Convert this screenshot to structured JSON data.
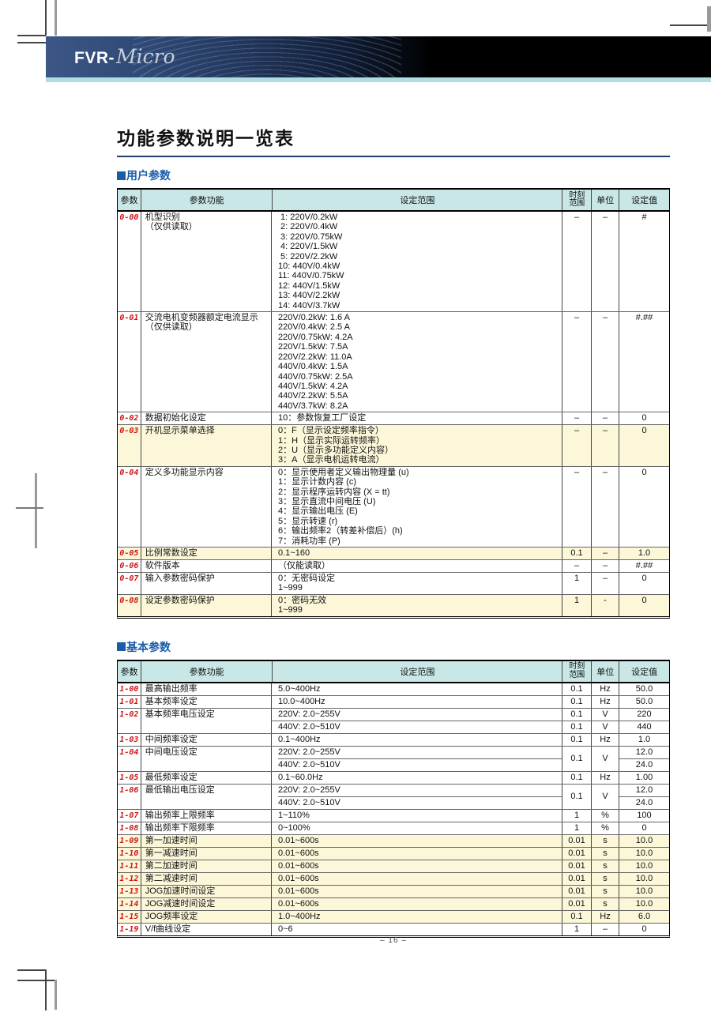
{
  "header": {
    "logo_prefix": "FVR-",
    "logo_suffix": "Micro"
  },
  "title": "功能参数说明一览表",
  "page": {
    "number_label": "– 16 –"
  },
  "columns": {
    "param": "参数",
    "function": "参数功能",
    "range": "设定范围",
    "res_line1": "时刻",
    "res_line2": "范围",
    "unit": "单位",
    "value": "设定值"
  },
  "colors": {
    "table_header_bg": "#c9e7e7",
    "row_highlight": "#fcf7d9",
    "param_code_red": "#cf1616",
    "section_blue": "#1a5ca8",
    "title_rule": "#1e3c6e",
    "accent_strip": "#aedee2",
    "band_navy": "#2e4874"
  },
  "sections": [
    {
      "heading": "用户参数",
      "rows": [
        {
          "code": "0-00",
          "name": [
            "机型识别",
            "（仅供读取）"
          ],
          "highlight": false,
          "merge_res_unit": false,
          "subrows": [
            {
              "range": [
                " 1: 220V/0.2kW",
                " 2: 220V/0.4kW",
                " 3: 220V/0.75kW",
                " 4: 220V/1.5kW",
                " 5: 220V/2.2kW",
                "10: 440V/0.4kW",
                "11: 440V/0.75kW",
                "12: 440V/1.5kW",
                "13: 440V/2.2kW",
                "14: 440V/3.7kW"
              ],
              "res": "–",
              "unit": "–",
              "value": "#"
            }
          ]
        },
        {
          "code": "0-01",
          "name": [
            "交流电机变频器额定电流显示",
            "（仅供读取）"
          ],
          "highlight": false,
          "merge_res_unit": false,
          "subrows": [
            {
              "range": [
                "220V/0.2kW: 1.6 A",
                "220V/0.4kW: 2.5 A",
                "220V/0.75kW: 4.2A",
                "220V/1.5kW: 7.5A",
                "220V/2.2kW: 11.0A",
                "440V/0.4kW: 1.5A",
                "440V/0.75kW: 2.5A",
                "440V/1.5kW: 4.2A",
                "440V/2.2kW: 5.5A",
                "440V/3.7kW: 8.2A"
              ],
              "res": "–",
              "unit": "–",
              "value": "#.##"
            }
          ]
        },
        {
          "code": "0-02",
          "name": [
            "数据初始化设定"
          ],
          "highlight": false,
          "merge_res_unit": false,
          "subrows": [
            {
              "range": [
                "10：参数恢复工厂设定"
              ],
              "res": "–",
              "unit": "–",
              "value": "0"
            }
          ]
        },
        {
          "code": "0-03",
          "name": [
            "开机显示菜单选择"
          ],
          "highlight": true,
          "merge_res_unit": false,
          "subrows": [
            {
              "range": [
                "0：F（显示设定频率指令）",
                "1：H（显示实际运转频率）",
                "2：U（显示多功能定义内容）",
                "3：A（显示电机运转电流）"
              ],
              "res": "–",
              "unit": "–",
              "value": "0"
            }
          ]
        },
        {
          "code": "0-04",
          "name": [
            "定义多功能显示内容"
          ],
          "highlight": false,
          "merge_res_unit": false,
          "subrows": [
            {
              "range": [
                "0：显示使用者定义输出物理量 (u)",
                "1：显示计数内容 (c)",
                "2：显示程序运转内容 (X = tt)",
                "3：显示直流中间电压 (U)",
                "4：显示输出电压 (E)",
                "5：显示转速 (r)",
                "6：输出频率2（转差补偿后）(h)",
                "7：消耗功率 (P)"
              ],
              "res": "–",
              "unit": "–",
              "value": "0"
            }
          ]
        },
        {
          "code": "0-05",
          "name": [
            "比例常数设定"
          ],
          "highlight": true,
          "merge_res_unit": false,
          "subrows": [
            {
              "range": [
                "0.1~160"
              ],
              "res": "0.1",
              "unit": "–",
              "value": "1.0"
            }
          ]
        },
        {
          "code": "0-06",
          "name": [
            "软件版本"
          ],
          "highlight": false,
          "merge_res_unit": false,
          "subrows": [
            {
              "range": [
                "（仅能读取）"
              ],
              "res": "–",
              "unit": "–",
              "value": "#.##"
            }
          ]
        },
        {
          "code": "0-07",
          "name": [
            "输入参数密码保护"
          ],
          "highlight": false,
          "merge_res_unit": false,
          "subrows": [
            {
              "range": [
                "0：无密码设定",
                "1~999"
              ],
              "res": "1",
              "unit": "–",
              "value": "0"
            }
          ]
        },
        {
          "code": "0-08",
          "name": [
            "设定参数密码保护"
          ],
          "highlight": true,
          "merge_res_unit": false,
          "subrows": [
            {
              "range": [
                "0：密码无效",
                "1~999"
              ],
              "res": "1",
              "unit": "-",
              "value": "0"
            }
          ]
        }
      ]
    },
    {
      "heading": "基本参数",
      "rows": [
        {
          "code": "1-00",
          "name": [
            "最高输出频率"
          ],
          "highlight": false,
          "merge_res_unit": false,
          "subrows": [
            {
              "range": [
                "5.0~400Hz"
              ],
              "res": "0.1",
              "unit": "Hz",
              "value": "50.0"
            }
          ]
        },
        {
          "code": "1-01",
          "name": [
            "基本频率设定"
          ],
          "highlight": false,
          "merge_res_unit": false,
          "subrows": [
            {
              "range": [
                "10.0~400Hz"
              ],
              "res": "0.1",
              "unit": "Hz",
              "value": "50.0"
            }
          ]
        },
        {
          "code": "1-02",
          "name": [
            "基本频率电压设定"
          ],
          "highlight": false,
          "merge_res_unit": false,
          "subrows": [
            {
              "range": [
                "220V: 2.0~255V"
              ],
              "res": "0.1",
              "unit": "V",
              "value": "220"
            },
            {
              "range": [
                "440V: 2.0~510V"
              ],
              "res": "0.1",
              "unit": "V",
              "value": "440"
            }
          ]
        },
        {
          "code": "1-03",
          "name": [
            "中间频率设定"
          ],
          "highlight": false,
          "merge_res_unit": false,
          "subrows": [
            {
              "range": [
                "0.1~400Hz"
              ],
              "res": "0.1",
              "unit": "Hz",
              "value": "1.0"
            }
          ]
        },
        {
          "code": "1-04",
          "name": [
            "中间电压设定"
          ],
          "highlight": false,
          "merge_res_unit": true,
          "res": "0.1",
          "unit": "V",
          "subrows": [
            {
              "range": [
                "220V: 2.0~255V"
              ],
              "value": "12.0"
            },
            {
              "range": [
                "440V: 2.0~510V"
              ],
              "value": "24.0"
            }
          ]
        },
        {
          "code": "1-05",
          "name": [
            "最低频率设定"
          ],
          "highlight": false,
          "merge_res_unit": false,
          "subrows": [
            {
              "range": [
                "0.1~60.0Hz"
              ],
              "res": "0.1",
              "unit": "Hz",
              "value": "1.00"
            }
          ]
        },
        {
          "code": "1-06",
          "name": [
            "最低输出电压设定"
          ],
          "highlight": false,
          "merge_res_unit": true,
          "res": "0.1",
          "unit": "V",
          "subrows": [
            {
              "range": [
                "220V: 2.0~255V"
              ],
              "value": "12.0"
            },
            {
              "range": [
                "440V: 2.0~510V"
              ],
              "value": "24.0"
            }
          ]
        },
        {
          "code": "1-07",
          "name": [
            "输出频率上限频率"
          ],
          "highlight": false,
          "merge_res_unit": false,
          "subrows": [
            {
              "range": [
                "1~110%"
              ],
              "res": "1",
              "unit": "%",
              "value": "100"
            }
          ]
        },
        {
          "code": "1-08",
          "name": [
            "输出频率下限频率"
          ],
          "highlight": false,
          "merge_res_unit": false,
          "subrows": [
            {
              "range": [
                "0~100%"
              ],
              "res": "1",
              "unit": "%",
              "value": "0"
            }
          ]
        },
        {
          "code": "1-09",
          "name": [
            "第一加速时间"
          ],
          "highlight": true,
          "merge_res_unit": false,
          "subrows": [
            {
              "range": [
                "0.01~600s"
              ],
              "res": "0.01",
              "unit": "s",
              "value": "10.0"
            }
          ]
        },
        {
          "code": "1-10",
          "name": [
            "第一减速时间"
          ],
          "highlight": true,
          "merge_res_unit": false,
          "subrows": [
            {
              "range": [
                "0.01~600s"
              ],
              "res": "0.01",
              "unit": "s",
              "value": "10.0"
            }
          ]
        },
        {
          "code": "1-11",
          "name": [
            "第二加速时间"
          ],
          "highlight": true,
          "merge_res_unit": false,
          "subrows": [
            {
              "range": [
                "0.01~600s"
              ],
              "res": "0.01",
              "unit": "s",
              "value": "10.0"
            }
          ]
        },
        {
          "code": "1-12",
          "name": [
            "第二减速时间"
          ],
          "highlight": true,
          "merge_res_unit": false,
          "subrows": [
            {
              "range": [
                "0.01~600s"
              ],
              "res": "0.01",
              "unit": "s",
              "value": "10.0"
            }
          ]
        },
        {
          "code": "1-13",
          "name": [
            "JOG加速时间设定"
          ],
          "highlight": true,
          "merge_res_unit": false,
          "subrows": [
            {
              "range": [
                "0.01~600s"
              ],
              "res": "0.01",
              "unit": "s",
              "value": "10.0"
            }
          ]
        },
        {
          "code": "1-14",
          "name": [
            "JOG减速时间设定"
          ],
          "highlight": true,
          "merge_res_unit": false,
          "subrows": [
            {
              "range": [
                "0.01~600s"
              ],
              "res": "0.01",
              "unit": "s",
              "value": "10.0"
            }
          ]
        },
        {
          "code": "1-15",
          "name": [
            "JOG频率设定"
          ],
          "highlight": true,
          "merge_res_unit": false,
          "subrows": [
            {
              "range": [
                "1.0~400Hz"
              ],
              "res": "0.1",
              "unit": "Hz",
              "value": "6.0"
            }
          ]
        },
        {
          "code": "1-19",
          "name": [
            "V/f曲线设定"
          ],
          "highlight": false,
          "merge_res_unit": false,
          "subrows": [
            {
              "range": [
                "0~6"
              ],
              "res": "1",
              "unit": "–",
              "value": "0"
            }
          ]
        }
      ]
    }
  ]
}
